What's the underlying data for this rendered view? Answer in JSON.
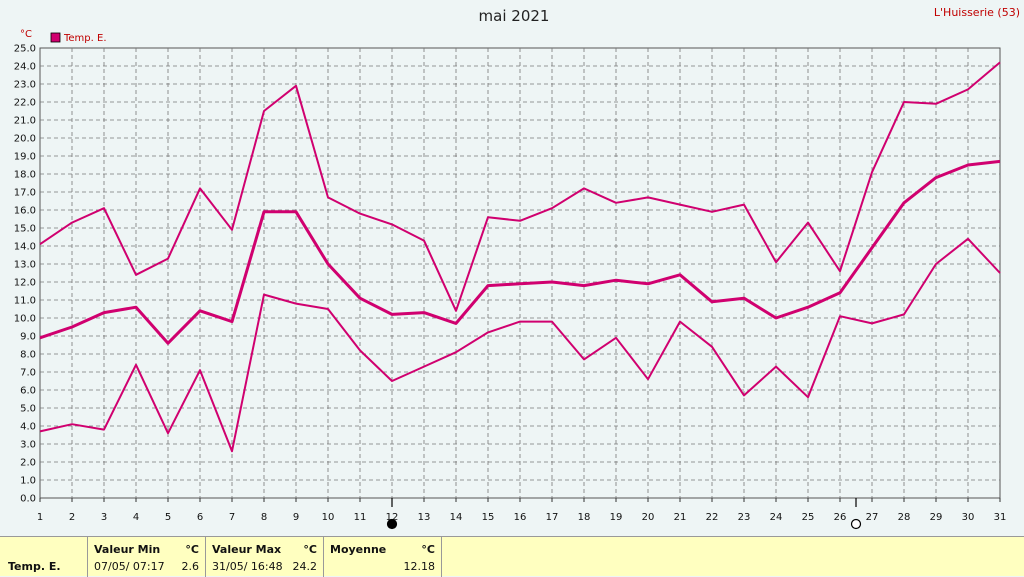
{
  "title": "mai 2021",
  "station": "L'Huisserie (53)",
  "unit_label": "°C",
  "legend": {
    "label": "Temp. E.",
    "color": "#d0006f"
  },
  "chart_data": {
    "type": "line",
    "title": "mai 2021",
    "ylabel": "°C",
    "xlabel": "",
    "x": [
      1,
      2,
      3,
      4,
      5,
      6,
      7,
      8,
      9,
      10,
      11,
      12,
      13,
      14,
      15,
      16,
      17,
      18,
      19,
      20,
      21,
      22,
      23,
      24,
      25,
      26,
      27,
      28,
      29,
      30,
      31
    ],
    "xlim": [
      1,
      31
    ],
    "ylim": [
      0,
      25
    ],
    "y_tick_step": 1,
    "grid": true,
    "legend_position": "top-left",
    "series": [
      {
        "name": "Temp. E.",
        "role": "max",
        "color": "#d0006f",
        "values": [
          14.1,
          15.3,
          16.1,
          12.4,
          13.3,
          17.2,
          14.9,
          21.5,
          22.9,
          16.7,
          15.8,
          15.2,
          14.3,
          10.4,
          15.6,
          15.4,
          16.1,
          17.2,
          16.4,
          16.7,
          16.3,
          15.9,
          16.3,
          13.1,
          15.3,
          12.6,
          18.1,
          22.0,
          21.9,
          22.7,
          24.2
        ]
      },
      {
        "name": "Temp. E.",
        "role": "mean",
        "color": "#d0006f",
        "values": [
          8.9,
          9.5,
          10.3,
          10.6,
          8.6,
          10.4,
          9.8,
          15.9,
          15.9,
          13.0,
          11.1,
          10.2,
          10.3,
          9.7,
          11.8,
          11.9,
          12.0,
          11.8,
          12.1,
          11.9,
          12.4,
          10.9,
          11.1,
          10.0,
          10.6,
          11.4,
          13.9,
          16.4,
          17.8,
          18.5,
          18.7
        ]
      },
      {
        "name": "Temp. E.",
        "role": "min",
        "color": "#d0006f",
        "values": [
          3.7,
          4.1,
          3.8,
          7.4,
          3.6,
          7.1,
          2.6,
          11.3,
          10.8,
          10.5,
          8.2,
          6.5,
          7.3,
          8.1,
          9.2,
          9.8,
          9.8,
          7.7,
          8.9,
          6.6,
          9.8,
          8.4,
          5.7,
          7.3,
          5.6,
          10.1,
          9.7,
          10.2,
          13.0,
          14.4,
          12.5
        ]
      }
    ],
    "moon_phases": [
      {
        "day": 12,
        "phase": "new-moon"
      },
      {
        "day": 26.5,
        "phase": "full-moon"
      }
    ]
  },
  "summary": {
    "row_label": "Temp. E.",
    "min": {
      "header": "Valeur Min",
      "unit": "°C",
      "datetime": "07/05/  07:17",
      "value": "2.6"
    },
    "max": {
      "header": "Valeur Max",
      "unit": "°C",
      "datetime": "31/05/  16:48",
      "value": "24.2"
    },
    "mean": {
      "header": "Moyenne",
      "unit": "°C",
      "value": "12.18"
    }
  }
}
